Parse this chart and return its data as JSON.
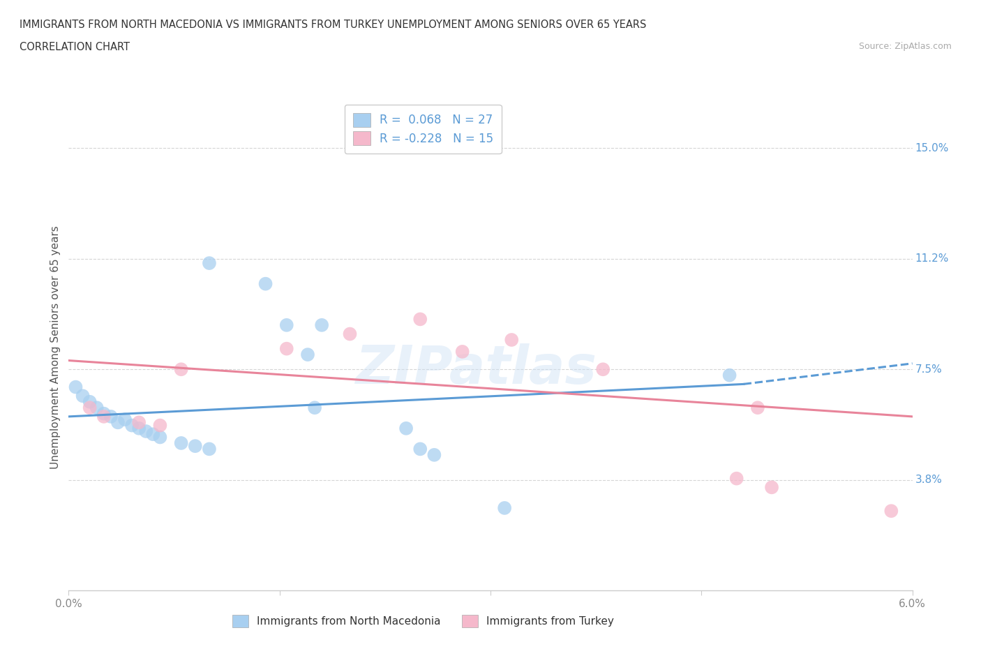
{
  "title_line1": "IMMIGRANTS FROM NORTH MACEDONIA VS IMMIGRANTS FROM TURKEY UNEMPLOYMENT AMONG SENIORS OVER 65 YEARS",
  "title_line2": "CORRELATION CHART",
  "source": "Source: ZipAtlas.com",
  "ylabel": "Unemployment Among Seniors over 65 years",
  "legend_label1": "Immigrants from North Macedonia",
  "legend_label2": "Immigrants from Turkey",
  "R1": 0.068,
  "N1": 27,
  "R2": -0.228,
  "N2": 15,
  "xlim": [
    0.0,
    6.0
  ],
  "ylim": [
    0.0,
    16.5
  ],
  "ytick_positions": [
    3.75,
    7.5,
    11.25,
    15.0
  ],
  "ytick_labels": [
    "3.8%",
    "7.5%",
    "11.2%",
    "15.0%"
  ],
  "color_blue": "#a8cff0",
  "color_pink": "#f5b8cb",
  "line_blue": "#5b9bd5",
  "line_pink": "#e8849a",
  "scatter_blue_x": [
    1.0,
    1.4,
    1.55,
    1.7,
    1.75,
    0.05,
    0.1,
    0.15,
    0.2,
    0.25,
    0.3,
    0.35,
    0.4,
    0.45,
    0.5,
    0.55,
    0.6,
    0.65,
    0.8,
    0.9,
    1.0,
    1.8,
    2.4,
    2.5,
    2.6,
    4.7,
    3.1
  ],
  "scatter_blue_y": [
    11.1,
    10.4,
    9.0,
    8.0,
    6.2,
    6.9,
    6.6,
    6.4,
    6.2,
    6.0,
    5.9,
    5.7,
    5.8,
    5.6,
    5.5,
    5.4,
    5.3,
    5.2,
    5.0,
    4.9,
    4.8,
    9.0,
    5.5,
    4.8,
    4.6,
    7.3,
    2.8
  ],
  "scatter_pink_x": [
    0.15,
    0.25,
    0.5,
    0.65,
    0.8,
    1.55,
    2.0,
    2.5,
    2.8,
    3.15,
    3.8,
    4.75,
    5.0,
    4.9,
    5.85
  ],
  "scatter_pink_y": [
    6.2,
    5.9,
    5.7,
    5.6,
    7.5,
    8.2,
    8.7,
    9.2,
    8.1,
    8.5,
    7.5,
    3.8,
    3.5,
    6.2,
    2.7
  ],
  "blue_trend_x0": 0.0,
  "blue_trend_x1": 4.8,
  "blue_trend_y0": 5.9,
  "blue_trend_y1": 7.0,
  "blue_dash_x0": 4.8,
  "blue_dash_x1": 6.0,
  "blue_dash_y0": 7.0,
  "blue_dash_y1": 7.7,
  "pink_trend_x0": 0.0,
  "pink_trend_x1": 6.0,
  "pink_trend_y0": 7.8,
  "pink_trend_y1": 5.9,
  "watermark": "ZIPatlas",
  "background_color": "#ffffff",
  "grid_color": "#d5d5d5"
}
